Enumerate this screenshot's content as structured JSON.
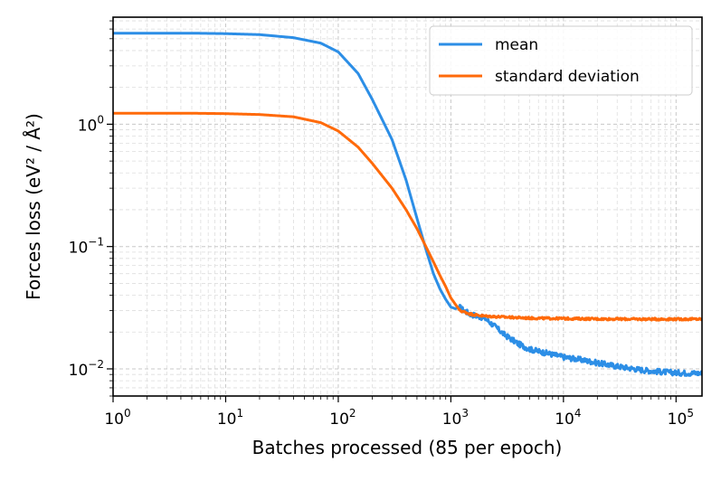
{
  "chart_data": {
    "type": "line",
    "x_scale": "log",
    "y_scale": "log",
    "xlabel": "Batches processed (85 per epoch)",
    "ylabel": "Forces loss (eV² / Å²)",
    "xlim": [
      1,
      170000
    ],
    "ylim": [
      0.006,
      7.5
    ],
    "grid": true,
    "legend_position": "top-right",
    "x_ticks": [
      {
        "value": 1,
        "base": "10",
        "exp": "0"
      },
      {
        "value": 10,
        "base": "10",
        "exp": "1"
      },
      {
        "value": 100,
        "base": "10",
        "exp": "2"
      },
      {
        "value": 1000,
        "base": "10",
        "exp": "3"
      },
      {
        "value": 10000,
        "base": "10",
        "exp": "4"
      },
      {
        "value": 100000,
        "base": "10",
        "exp": "5"
      }
    ],
    "y_ticks": [
      {
        "value": 1,
        "base": "10",
        "exp": "0"
      },
      {
        "value": 0.1,
        "base": "10",
        "exp": "−1"
      },
      {
        "value": 0.01,
        "base": "10",
        "exp": "−2"
      }
    ],
    "series": [
      {
        "name": "mean",
        "color": "#2c8ee6",
        "noise_from": 1200,
        "x": [
          1,
          5,
          10,
          20,
          40,
          70,
          100,
          150,
          200,
          300,
          400,
          500,
          600,
          700,
          800,
          900,
          1000,
          1100,
          1200,
          1300,
          1500,
          2000,
          2500,
          3000,
          4000,
          5000,
          7000,
          10000,
          15000,
          20000,
          30000,
          50000,
          70000,
          100000,
          170000
        ],
        "y": [
          5.55,
          5.55,
          5.5,
          5.4,
          5.1,
          4.6,
          3.9,
          2.6,
          1.6,
          0.75,
          0.35,
          0.17,
          0.095,
          0.06,
          0.045,
          0.037,
          0.032,
          0.031,
          0.032,
          0.03,
          0.028,
          0.026,
          0.022,
          0.019,
          0.016,
          0.0145,
          0.0135,
          0.0125,
          0.0118,
          0.0112,
          0.0105,
          0.0098,
          0.0095,
          0.0093,
          0.0092
        ]
      },
      {
        "name": "standard deviation",
        "color": "#ff6a0a",
        "noise_from": 1200,
        "x": [
          1,
          5,
          10,
          20,
          40,
          70,
          100,
          150,
          200,
          300,
          400,
          500,
          600,
          700,
          800,
          900,
          1000,
          1200,
          1500,
          2000,
          3000,
          5000,
          10000,
          20000,
          50000,
          100000,
          170000
        ],
        "y": [
          1.23,
          1.23,
          1.22,
          1.2,
          1.15,
          1.03,
          0.88,
          0.65,
          0.48,
          0.3,
          0.2,
          0.14,
          0.1,
          0.075,
          0.058,
          0.047,
          0.038,
          0.03,
          0.028,
          0.027,
          0.0265,
          0.026,
          0.0258,
          0.0256,
          0.0255,
          0.0255,
          0.0255
        ]
      }
    ]
  }
}
